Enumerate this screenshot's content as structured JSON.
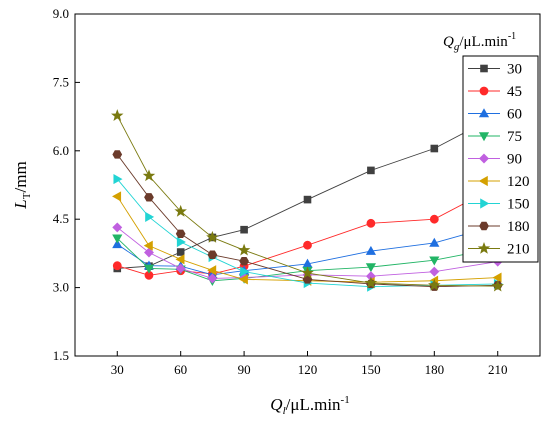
{
  "chart_data": {
    "type": "line",
    "x": [
      30,
      45,
      60,
      75,
      90,
      120,
      150,
      180,
      210
    ],
    "xticks": [
      30,
      60,
      90,
      120,
      150,
      180,
      210
    ],
    "yticks": [
      "1.5",
      "3.0",
      "4.5",
      "6.0",
      "7.5",
      "9.0"
    ],
    "xlim": [
      10,
      230
    ],
    "ylim": [
      1.5,
      9.0
    ],
    "grid": false,
    "legend_position": "right",
    "xlabel": {
      "main": "Q",
      "sub": "l",
      "rest": "/μL.min",
      "sup": "-1"
    },
    "ylabel": {
      "main": "L",
      "sub": "T",
      "rest": "/mm"
    },
    "legend_title": {
      "main": "Q",
      "sub": "g",
      "rest": "/μL.min",
      "sup": "-1"
    },
    "series": [
      {
        "name": "30",
        "color": "#404040",
        "marker": "square",
        "values": [
          3.42,
          3.47,
          3.78,
          4.1,
          4.27,
          4.93,
          5.57,
          6.05,
          6.78
        ]
      },
      {
        "name": "45",
        "color": "#ff2a2a",
        "marker": "circle",
        "values": [
          3.48,
          3.27,
          3.37,
          3.3,
          3.47,
          3.93,
          4.41,
          4.5,
          5.23
        ]
      },
      {
        "name": "60",
        "color": "#1f6fe0",
        "marker": "triangle-up",
        "values": [
          3.95,
          3.48,
          3.47,
          3.28,
          3.37,
          3.52,
          3.8,
          3.98,
          4.37
        ]
      },
      {
        "name": "75",
        "color": "#22b566",
        "marker": "triangle-down",
        "values": [
          4.08,
          3.42,
          3.4,
          3.15,
          3.2,
          3.37,
          3.45,
          3.6,
          3.87
        ]
      },
      {
        "name": "90",
        "color": "#c060e0",
        "marker": "diamond",
        "values": [
          4.32,
          3.77,
          3.42,
          3.2,
          3.22,
          3.28,
          3.25,
          3.35,
          3.57
        ]
      },
      {
        "name": "120",
        "color": "#d4a000",
        "marker": "triangle-left",
        "values": [
          5.0,
          3.92,
          3.62,
          3.38,
          3.18,
          3.15,
          3.12,
          3.15,
          3.22
        ]
      },
      {
        "name": "150",
        "color": "#22d4d4",
        "marker": "triangle-right",
        "values": [
          5.38,
          4.55,
          4.0,
          3.67,
          3.35,
          3.1,
          3.02,
          3.05,
          3.08
        ]
      },
      {
        "name": "180",
        "color": "#6b3b2b",
        "marker": "hexagon",
        "values": [
          5.92,
          4.98,
          4.18,
          3.72,
          3.58,
          3.18,
          3.08,
          3.02,
          3.05
        ]
      },
      {
        "name": "210",
        "color": "#7a7a10",
        "marker": "star",
        "values": [
          6.77,
          5.45,
          4.67,
          4.1,
          3.82,
          3.32,
          3.1,
          3.05,
          3.03
        ]
      }
    ]
  }
}
